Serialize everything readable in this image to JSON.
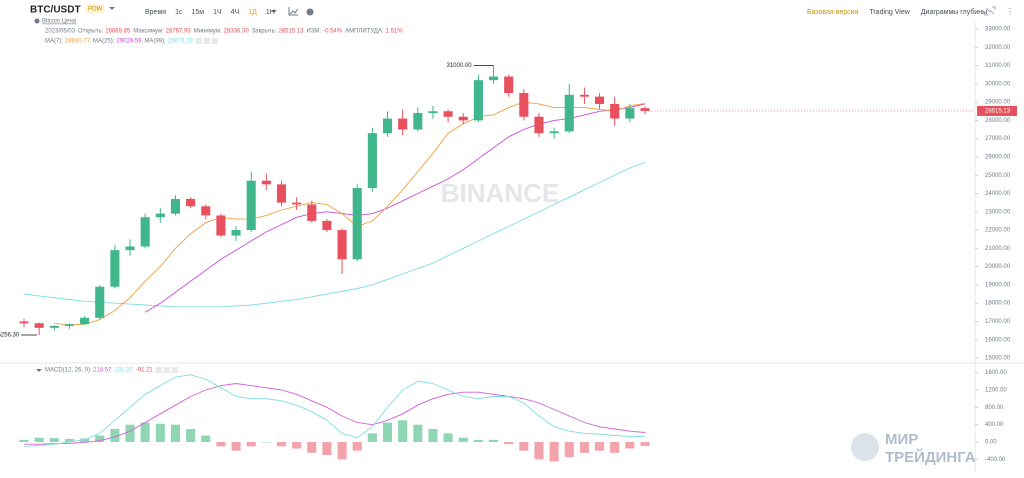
{
  "header": {
    "symbol": "BTC/USDT",
    "tag": "POW",
    "subtitle": "Bitcoin Цена",
    "timeframes": [
      "Время",
      "1с",
      "15м",
      "1Ч",
      "4Ч",
      "1Д",
      "1Н"
    ],
    "active_timeframe": "1Д",
    "views": [
      "Базовая версия",
      "Trading View",
      "Диаграммы глубины"
    ]
  },
  "info": {
    "date": "2023/05/03",
    "fields": [
      {
        "label": "Открыть:",
        "value": "28669.85"
      },
      {
        "label": "Максимум:",
        "value": "28767.93"
      },
      {
        "label": "Минимум:",
        "value": "28336.30"
      },
      {
        "label": "Закрыть:",
        "value": "28515.13"
      },
      {
        "label": "ИЗМ:",
        "value": "-0.54%"
      },
      {
        "label": "АМПЛИТУДА:",
        "value": "1.51%"
      }
    ]
  },
  "ma_legend": [
    {
      "label": "MA(7):",
      "value": "28930.77",
      "color": "#f0a040"
    },
    {
      "label": "MA(25):",
      "value": "29029.59",
      "color": "#c84fd8"
    },
    {
      "label": "MA(99):",
      "value": "25676.29",
      "color": "#7fdde0"
    }
  ],
  "chart": {
    "watermark": "BINANCE",
    "high_label": "31000.00",
    "low_label": "16256.30",
    "last_price": {
      "value": 28515.13,
      "label": "28515.13"
    },
    "ylim": [
      15000,
      33000
    ],
    "yticks": [
      {
        "value": 15000,
        "label": "15000.00"
      },
      {
        "value": 16000,
        "label": "16000.00"
      },
      {
        "value": 17000,
        "label": "17000.00"
      },
      {
        "value": 18000,
        "label": "18000.00"
      },
      {
        "value": 19000,
        "label": "19000.00"
      },
      {
        "value": 20000,
        "label": "20000.00"
      },
      {
        "value": 21000,
        "label": "21000.00"
      },
      {
        "value": 22000,
        "label": "22000.00"
      },
      {
        "value": 23000,
        "label": "23000.00"
      },
      {
        "value": 24000,
        "label": "24000.00"
      },
      {
        "value": 25000,
        "label": "25000.00"
      },
      {
        "value": 26000,
        "label": "26000.00"
      },
      {
        "value": 27000,
        "label": "27000.00"
      },
      {
        "value": 28000,
        "label": "28000.00"
      },
      {
        "value": 29000,
        "label": "29000.00"
      },
      {
        "value": 30000,
        "label": "30000.00"
      },
      {
        "value": 31000,
        "label": "31000.00"
      },
      {
        "value": 32000,
        "label": "32000.00"
      },
      {
        "value": 33000,
        "label": "33000.00"
      }
    ],
    "up_color": "#3fb68b",
    "down_color": "#e8505e",
    "candles": [
      [
        17000,
        17150,
        16700,
        16900
      ],
      [
        16900,
        16950,
        16256.3,
        16650
      ],
      [
        16650,
        16800,
        16500,
        16750
      ],
      [
        16750,
        16900,
        16600,
        16850
      ],
      [
        16850,
        17300,
        16800,
        17200
      ],
      [
        17200,
        19000,
        17100,
        18900
      ],
      [
        18900,
        21200,
        18800,
        20900
      ],
      [
        20900,
        21500,
        20600,
        21100
      ],
      [
        21100,
        22900,
        21000,
        22700
      ],
      [
        22700,
        23200,
        22400,
        22900
      ],
      [
        22900,
        23900,
        22800,
        23700
      ],
      [
        23700,
        23800,
        23200,
        23300
      ],
      [
        23300,
        23400,
        22600,
        22800
      ],
      [
        22800,
        22900,
        21600,
        21700
      ],
      [
        21700,
        22200,
        21400,
        22000
      ],
      [
        22000,
        25200,
        21900,
        24700
      ],
      [
        24700,
        25100,
        24200,
        24500
      ],
      [
        24500,
        24700,
        23300,
        23500
      ],
      [
        23500,
        23800,
        23100,
        23400
      ],
      [
        23400,
        23600,
        22400,
        22500
      ],
      [
        22500,
        22600,
        21900,
        22000
      ],
      [
        22000,
        22100,
        19600,
        20400
      ],
      [
        20400,
        24500,
        20300,
        24300
      ],
      [
        24300,
        27600,
        24100,
        27300
      ],
      [
        27300,
        28500,
        27100,
        28100
      ],
      [
        28100,
        28600,
        27200,
        27500
      ],
      [
        27500,
        28700,
        27400,
        28400
      ],
      [
        28400,
        28800,
        28100,
        28500
      ],
      [
        28500,
        28600,
        27900,
        28200
      ],
      [
        28200,
        28400,
        27800,
        28000
      ],
      [
        28000,
        30500,
        27900,
        30200
      ],
      [
        30200,
        31000,
        30000,
        30400
      ],
      [
        30400,
        30500,
        29300,
        29500
      ],
      [
        29500,
        29700,
        28000,
        28200
      ],
      [
        28200,
        28400,
        27100,
        27300
      ],
      [
        27300,
        27600,
        27000,
        27400
      ],
      [
        27400,
        30000,
        27300,
        29400
      ],
      [
        29400,
        29800,
        28900,
        29300
      ],
      [
        29300,
        29500,
        28600,
        28900
      ],
      [
        28900,
        29300,
        27700,
        28100
      ],
      [
        28100,
        28900,
        27900,
        28669.85
      ],
      [
        28669.85,
        28767.93,
        28336.3,
        28515.13
      ]
    ],
    "ma7": [
      null,
      null,
      16900,
      16800,
      16850,
      17100,
      17600,
      18300,
      19200,
      20000,
      21000,
      21800,
      22400,
      22700,
      22600,
      22600,
      22800,
      23100,
      23300,
      23500,
      23400,
      22900,
      22200,
      22500,
      23300,
      24200,
      25200,
      26200,
      27300,
      27800,
      28200,
      28300,
      28700,
      29000,
      28900,
      28700,
      28700,
      28700,
      28600,
      28500,
      28800,
      28930
    ],
    "ma25": [
      null,
      null,
      null,
      null,
      null,
      null,
      null,
      null,
      17500,
      18000,
      18600,
      19200,
      19800,
      20400,
      20900,
      21400,
      21900,
      22300,
      22700,
      22900,
      23000,
      22900,
      22800,
      22900,
      23200,
      23600,
      24000,
      24400,
      24800,
      25300,
      25900,
      26500,
      27100,
      27500,
      27800,
      28000,
      28100,
      28300,
      28500,
      28600,
      28700,
      28900
    ],
    "ma99": [
      18500,
      18400,
      18300,
      18200,
      18100,
      18050,
      18000,
      17950,
      17900,
      17850,
      17800,
      17800,
      17800,
      17800,
      17850,
      17900,
      18000,
      18100,
      18200,
      18350,
      18500,
      18650,
      18800,
      19000,
      19300,
      19600,
      19900,
      20200,
      20600,
      21000,
      21400,
      21800,
      22200,
      22600,
      23000,
      23400,
      23800,
      24200,
      24600,
      25000,
      25400,
      25700
    ]
  },
  "macd": {
    "label": "MACD(12, 26, 9)",
    "values": [
      {
        "value": "218.57",
        "color": "#d35fd8"
      },
      {
        "value": "131.37",
        "color": "#7fdde0"
      },
      {
        "value": "-91.21",
        "color": "#e8505e"
      }
    ],
    "ylim": [
      -600,
      1800
    ],
    "yticks": [
      {
        "value": -400,
        "label": "-400.00"
      },
      {
        "value": 0,
        "label": "0.00"
      },
      {
        "value": 400,
        "label": "400.00"
      },
      {
        "value": 800,
        "label": "800.00"
      },
      {
        "value": 1200,
        "label": "1200.00"
      },
      {
        "value": 1600,
        "label": "1600.00"
      }
    ],
    "hist": [
      50,
      100,
      90,
      70,
      80,
      150,
      300,
      400,
      450,
      420,
      400,
      300,
      150,
      -100,
      -200,
      -100,
      0,
      -100,
      -150,
      -250,
      -300,
      -400,
      -200,
      200,
      450,
      500,
      400,
      300,
      200,
      100,
      50,
      50,
      -50,
      -200,
      -400,
      -450,
      -350,
      -250,
      -200,
      -250,
      -150,
      -91.21
    ],
    "macd": [
      -100,
      -80,
      -50,
      0,
      50,
      200,
      500,
      800,
      1100,
      1300,
      1500,
      1550,
      1450,
      1250,
      1050,
      1000,
      1000,
      950,
      850,
      700,
      500,
      200,
      100,
      350,
      800,
      1200,
      1400,
      1350,
      1200,
      1050,
      1000,
      1050,
      1050,
      900,
      600,
      350,
      250,
      200,
      180,
      150,
      130,
      131.37
    ],
    "signal": [
      -50,
      -50,
      -40,
      -30,
      -10,
      30,
      120,
      250,
      450,
      650,
      850,
      1050,
      1200,
      1300,
      1350,
      1300,
      1250,
      1200,
      1100,
      950,
      800,
      600,
      450,
      400,
      500,
      650,
      850,
      1000,
      1100,
      1150,
      1150,
      1100,
      1050,
      1000,
      900,
      750,
      600,
      450,
      350,
      300,
      250,
      218.57
    ]
  },
  "logo": [
    "МИР",
    "ТРЕЙДИНГА"
  ]
}
